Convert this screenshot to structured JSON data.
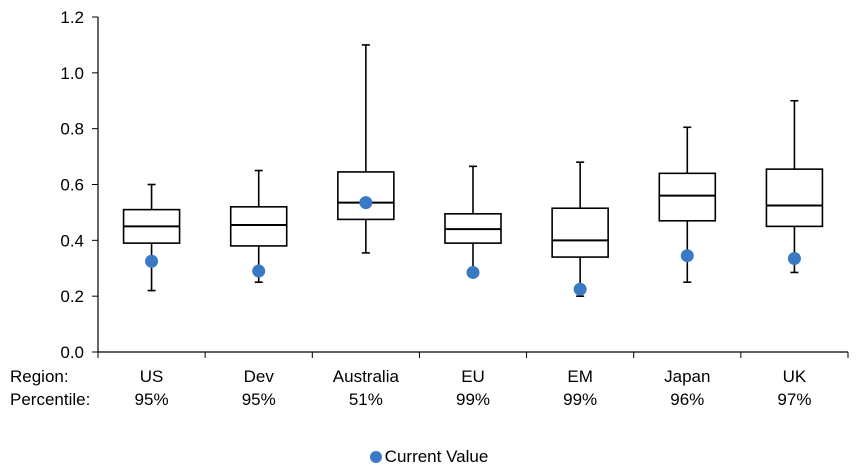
{
  "chart_data": {
    "type": "box",
    "ylim": [
      0,
      1.2
    ],
    "yticks": [
      "0.0",
      "0.2",
      "0.4",
      "0.6",
      "0.8",
      "1.0",
      "1.2"
    ],
    "row_labels": {
      "region": "Region:",
      "percentile": "Percentile:"
    },
    "categories": [
      {
        "region": "US",
        "percentile": "95%",
        "min": 0.22,
        "q1": 0.39,
        "median": 0.45,
        "q3": 0.51,
        "max": 0.6,
        "current": 0.325
      },
      {
        "region": "Dev",
        "percentile": "95%",
        "min": 0.25,
        "q1": 0.38,
        "median": 0.455,
        "q3": 0.52,
        "max": 0.65,
        "current": 0.29
      },
      {
        "region": "Australia",
        "percentile": "51%",
        "min": 0.355,
        "q1": 0.475,
        "median": 0.535,
        "q3": 0.645,
        "max": 1.1,
        "current": 0.535
      },
      {
        "region": "EU",
        "percentile": "99%",
        "min": 0.29,
        "q1": 0.39,
        "median": 0.44,
        "q3": 0.495,
        "max": 0.665,
        "current": 0.285
      },
      {
        "region": "EM",
        "percentile": "99%",
        "min": 0.2,
        "q1": 0.34,
        "median": 0.4,
        "q3": 0.515,
        "max": 0.68,
        "current": 0.225
      },
      {
        "region": "Japan",
        "percentile": "96%",
        "min": 0.25,
        "q1": 0.47,
        "median": 0.56,
        "q3": 0.64,
        "max": 0.805,
        "current": 0.345
      },
      {
        "region": "UK",
        "percentile": "97%",
        "min": 0.285,
        "q1": 0.45,
        "median": 0.525,
        "q3": 0.655,
        "max": 0.9,
        "current": 0.335
      }
    ],
    "legend": {
      "label": "Current Value",
      "color": "#3a7ac4",
      "position": "bottom-center"
    },
    "grid": false
  }
}
